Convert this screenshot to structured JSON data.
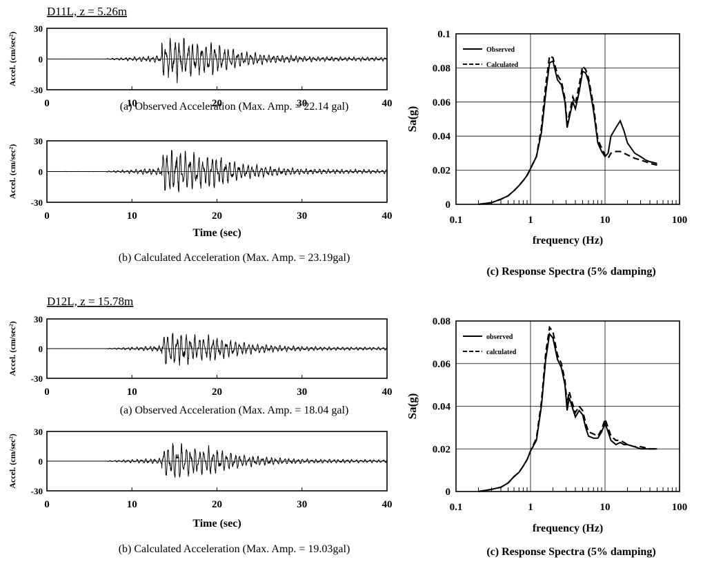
{
  "colors": {
    "ink": "#000000",
    "grid": "#000000",
    "background": "#ffffff"
  },
  "chart_data": [
    {
      "group_label": "D11L,  z = 5.26m",
      "type": "line",
      "title": "(a) Observed Acceleration  (Max. Amp. = 22.14 gal)",
      "xlabel": "",
      "ylabel": "Accel. (cm/sec²)",
      "xlim": [
        0,
        40
      ],
      "ylim": [
        -30,
        30
      ],
      "xticks": [
        "0",
        "10",
        "20",
        "30",
        "40"
      ],
      "yticks": [
        "30",
        "0",
        "-30"
      ],
      "max_amp": 22.14,
      "seed": 11
    },
    {
      "type": "line",
      "title": "(b) Calculated Acceleration  (Max. Amp. = 23.19gal)",
      "xlabel": "Time (sec)",
      "ylabel": "Accel. (cm/sec²)",
      "xlim": [
        0,
        40
      ],
      "ylim": [
        -30,
        30
      ],
      "xticks": [
        "0",
        "10",
        "20",
        "30",
        "40"
      ],
      "yticks": [
        "30",
        "0",
        "-30"
      ],
      "max_amp": 23.19,
      "seed": 23
    },
    {
      "type": "line",
      "title": "(c) Response Spectra (5% damping)",
      "xlabel": "frequency (Hz)",
      "ylabel": "Sa(g)",
      "xscale": "log",
      "xlim": [
        0.1,
        100
      ],
      "ylim": [
        0,
        0.1
      ],
      "xticks": [
        "0.1",
        "1",
        "10",
        "100"
      ],
      "yticks": [
        "0",
        "0.02",
        "0.04",
        "0.06",
        "0.08",
        "0.1"
      ],
      "legend": "top-left",
      "series": [
        {
          "name": "Observed",
          "x": [
            0.2,
            0.3,
            0.4,
            0.5,
            0.6,
            0.7,
            0.8,
            0.9,
            1.0,
            1.2,
            1.4,
            1.6,
            1.8,
            2.0,
            2.3,
            2.6,
            2.9,
            3.1,
            3.4,
            3.7,
            4.0,
            4.5,
            5.0,
            5.5,
            6.0,
            7.0,
            8.0,
            9.0,
            10,
            11,
            12,
            14,
            16,
            18,
            20,
            25,
            30,
            35,
            40,
            50
          ],
          "y": [
            0.0,
            0.001,
            0.003,
            0.005,
            0.008,
            0.011,
            0.014,
            0.017,
            0.021,
            0.028,
            0.042,
            0.065,
            0.083,
            0.084,
            0.073,
            0.07,
            0.06,
            0.045,
            0.053,
            0.06,
            0.056,
            0.066,
            0.078,
            0.077,
            0.072,
            0.055,
            0.036,
            0.031,
            0.028,
            0.03,
            0.04,
            0.045,
            0.049,
            0.043,
            0.036,
            0.03,
            0.028,
            0.026,
            0.025,
            0.024
          ]
        },
        {
          "name": "Calculated",
          "x": [
            0.2,
            0.3,
            0.4,
            0.5,
            0.6,
            0.7,
            0.8,
            0.9,
            1.0,
            1.2,
            1.4,
            1.6,
            1.8,
            2.0,
            2.3,
            2.6,
            2.9,
            3.1,
            3.4,
            3.7,
            4.0,
            4.5,
            5.0,
            5.5,
            6.0,
            7.0,
            8.0,
            9.0,
            10,
            11,
            12,
            14,
            16,
            18,
            20,
            25,
            30,
            35,
            40,
            50
          ],
          "y": [
            0.0,
            0.001,
            0.003,
            0.005,
            0.008,
            0.011,
            0.014,
            0.017,
            0.021,
            0.028,
            0.045,
            0.07,
            0.087,
            0.086,
            0.076,
            0.072,
            0.062,
            0.047,
            0.055,
            0.063,
            0.059,
            0.07,
            0.081,
            0.079,
            0.074,
            0.058,
            0.038,
            0.033,
            0.029,
            0.027,
            0.03,
            0.031,
            0.031,
            0.03,
            0.029,
            0.027,
            0.026,
            0.025,
            0.024,
            0.023
          ]
        }
      ]
    },
    {
      "group_label": "D12L,  z = 15.78m",
      "type": "line",
      "title": "(a) Observed Acceleration  (Max. Amp. = 18.04 gal)",
      "xlabel": "",
      "ylabel": "Accel. (cm/sec²)",
      "xlim": [
        0,
        40
      ],
      "ylim": [
        -30,
        30
      ],
      "xticks": [
        "0",
        "10",
        "20",
        "30",
        "40"
      ],
      "yticks": [
        "30",
        "0",
        "-30"
      ],
      "max_amp": 18.04,
      "seed": 37
    },
    {
      "type": "line",
      "title": "(b) Calculated Acceleration  (Max. Amp. = 19.03gal)",
      "xlabel": "Time (sec)",
      "ylabel": "Accel. (cm/sec²)",
      "xlim": [
        0,
        40
      ],
      "ylim": [
        -30,
        30
      ],
      "xticks": [
        "0",
        "10",
        "20",
        "30",
        "40"
      ],
      "yticks": [
        "30",
        "0",
        "-30"
      ],
      "max_amp": 19.03,
      "seed": 53
    },
    {
      "type": "line",
      "title": "(c) Response Spectra (5% damping)",
      "xlabel": "frequency (Hz)",
      "ylabel": "Sa(g)",
      "xscale": "log",
      "xlim": [
        0.1,
        100
      ],
      "ylim": [
        0,
        0.08
      ],
      "xticks": [
        "0.1",
        "1",
        "10",
        "100"
      ],
      "yticks": [
        "0",
        "0.02",
        "0.04",
        "0.06",
        "0.08"
      ],
      "legend": "top-left",
      "series": [
        {
          "name": "observed",
          "x": [
            0.2,
            0.3,
            0.4,
            0.5,
            0.6,
            0.7,
            0.8,
            0.9,
            1.0,
            1.2,
            1.4,
            1.6,
            1.8,
            2.0,
            2.3,
            2.6,
            2.9,
            3.1,
            3.3,
            3.6,
            4.0,
            4.5,
            5.0,
            5.5,
            6.0,
            7.0,
            8.0,
            9.0,
            10,
            11,
            12,
            14,
            16,
            18,
            20,
            25,
            30,
            40,
            50
          ],
          "y": [
            0.0,
            0.001,
            0.002,
            0.004,
            0.007,
            0.009,
            0.012,
            0.015,
            0.019,
            0.024,
            0.04,
            0.062,
            0.074,
            0.072,
            0.062,
            0.058,
            0.05,
            0.038,
            0.044,
            0.04,
            0.035,
            0.038,
            0.036,
            0.03,
            0.026,
            0.025,
            0.025,
            0.028,
            0.032,
            0.028,
            0.024,
            0.022,
            0.023,
            0.022,
            0.022,
            0.021,
            0.02,
            0.02,
            0.02
          ]
        },
        {
          "name": "calculated",
          "x": [
            0.2,
            0.3,
            0.4,
            0.5,
            0.6,
            0.7,
            0.8,
            0.9,
            1.0,
            1.2,
            1.4,
            1.6,
            1.8,
            2.0,
            2.3,
            2.6,
            2.9,
            3.1,
            3.3,
            3.6,
            4.0,
            4.5,
            5.0,
            5.5,
            6.0,
            7.0,
            8.0,
            9.0,
            10,
            11,
            12,
            14,
            16,
            18,
            20,
            25,
            30,
            40,
            50
          ],
          "y": [
            0.0,
            0.001,
            0.002,
            0.004,
            0.007,
            0.009,
            0.012,
            0.015,
            0.019,
            0.025,
            0.042,
            0.065,
            0.077,
            0.075,
            0.064,
            0.06,
            0.052,
            0.041,
            0.047,
            0.042,
            0.037,
            0.04,
            0.038,
            0.032,
            0.028,
            0.027,
            0.026,
            0.029,
            0.034,
            0.03,
            0.026,
            0.024,
            0.024,
            0.023,
            0.022,
            0.021,
            0.021,
            0.02,
            0.02
          ]
        }
      ]
    }
  ]
}
